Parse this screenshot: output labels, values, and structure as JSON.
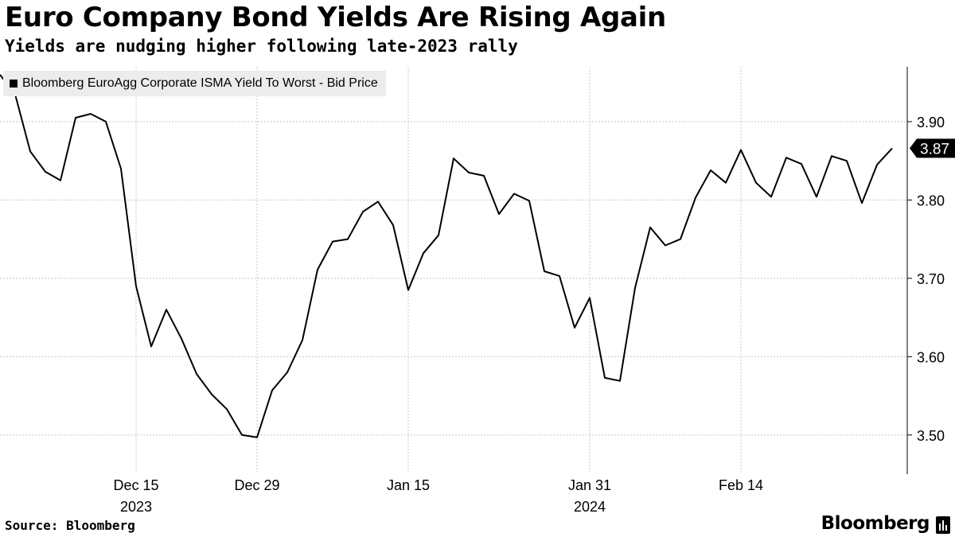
{
  "header": {
    "title": "Euro Company Bond Yields Are Rising Again",
    "subtitle": "Yields are nudging higher following late-2023 rally"
  },
  "footer": {
    "source": "Source: Bloomberg",
    "brand": "Bloomberg"
  },
  "colors": {
    "line": "#000000",
    "grid": "#c8c8c8",
    "legend_bg": "#ececec"
  },
  "chart_data": {
    "type": "line",
    "title": "Euro Company Bond Yields Are Rising Again",
    "subtitle": "Yields are nudging higher following late-2023 rally",
    "xlabel": "",
    "ylabel": "",
    "ylim": [
      3.45,
      3.97
    ],
    "yticks": [
      3.5,
      3.6,
      3.7,
      3.8,
      3.9
    ],
    "ytick_labels": [
      "3.50",
      "3.60",
      "3.70",
      "3.80",
      "3.90"
    ],
    "xticks": [
      {
        "index": 9,
        "label": "Dec 15",
        "year": "2023"
      },
      {
        "index": 17,
        "label": "Dec 29",
        "year": ""
      },
      {
        "index": 27,
        "label": "Jan 15",
        "year": ""
      },
      {
        "index": 39,
        "label": "Jan 31",
        "year": "2024"
      },
      {
        "index": 49,
        "label": "Feb 14",
        "year": ""
      }
    ],
    "grid": true,
    "legend_position": "top-left",
    "last_value_label": "3.87",
    "series": [
      {
        "name": "Bloomberg EuroAgg Corporate ISMA Yield To Worst - Bid Price",
        "values": [
          3.96,
          3.935,
          3.862,
          3.836,
          3.825,
          3.905,
          3.91,
          3.9,
          3.84,
          3.69,
          3.613,
          3.66,
          3.623,
          3.578,
          3.552,
          3.533,
          3.5,
          3.497,
          3.557,
          3.58,
          3.621,
          3.711,
          3.747,
          3.75,
          3.785,
          3.798,
          3.768,
          3.685,
          3.732,
          3.755,
          3.853,
          3.835,
          3.831,
          3.782,
          3.808,
          3.799,
          3.709,
          3.703,
          3.637,
          3.675,
          3.573,
          3.569,
          3.688,
          3.765,
          3.742,
          3.75,
          3.803,
          3.838,
          3.822,
          3.864,
          3.822,
          3.804,
          3.854,
          3.846,
          3.804,
          3.856,
          3.85,
          3.796,
          3.845,
          3.866
        ]
      }
    ]
  }
}
